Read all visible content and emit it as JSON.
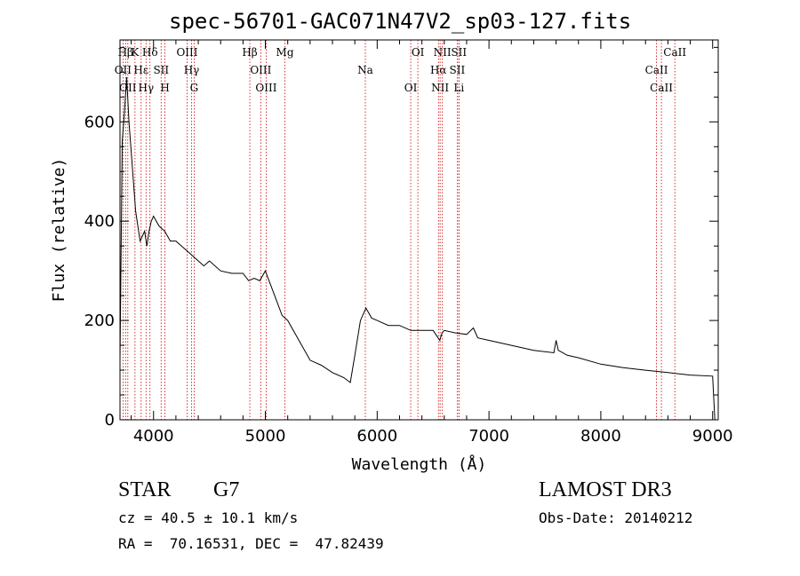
{
  "chart_data": {
    "type": "line",
    "title": "spec-56701-GAC071N47V2_sp03-127.fits",
    "xlabel": "Wavelength (Å)",
    "ylabel": "Flux (relative)",
    "xlim": [
      3700,
      9050
    ],
    "ylim": [
      0,
      765
    ],
    "x_ticks": [
      4000,
      5000,
      6000,
      7000,
      8000,
      9000
    ],
    "y_ticks": [
      0,
      200,
      400,
      600
    ],
    "series": [
      {
        "name": "flux",
        "x": [
          3700,
          3720,
          3740,
          3760,
          3780,
          3800,
          3820,
          3840,
          3860,
          3880,
          3900,
          3920,
          3940,
          3960,
          3980,
          4000,
          4050,
          4100,
          4150,
          4200,
          4250,
          4300,
          4350,
          4400,
          4450,
          4500,
          4600,
          4700,
          4800,
          4850,
          4900,
          4950,
          5000,
          5050,
          5100,
          5150,
          5200,
          5300,
          5400,
          5500,
          5600,
          5700,
          5760,
          5800,
          5850,
          5900,
          5950,
          6000,
          6100,
          6200,
          6300,
          6400,
          6500,
          6560,
          6580,
          6600,
          6700,
          6800,
          6860,
          6900,
          7000,
          7200,
          7400,
          7580,
          7600,
          7620,
          7700,
          7800,
          8000,
          8200,
          8400,
          8600,
          8800,
          9000,
          9020
        ],
        "y": [
          120,
          560,
          620,
          690,
          600,
          540,
          480,
          420,
          390,
          360,
          370,
          380,
          350,
          380,
          400,
          410,
          390,
          380,
          360,
          360,
          350,
          340,
          330,
          320,
          310,
          320,
          300,
          295,
          295,
          280,
          285,
          280,
          300,
          270,
          240,
          210,
          200,
          160,
          120,
          110,
          95,
          85,
          75,
          130,
          200,
          225,
          205,
          200,
          190,
          190,
          180,
          180,
          180,
          160,
          175,
          180,
          175,
          172,
          185,
          165,
          160,
          150,
          140,
          135,
          160,
          140,
          130,
          125,
          112,
          105,
          100,
          95,
          90,
          88,
          0
        ]
      }
    ],
    "lines": [
      {
        "label": "Hβ",
        "x": 3750
      },
      {
        "label": "OII",
        "x": 3727
      },
      {
        "label": "OII",
        "x": 3770
      },
      {
        "label": "K",
        "x": 3834
      },
      {
        "label": "Hε",
        "x": 3889
      },
      {
        "label": "Hγ",
        "x": 3933
      },
      {
        "label": "Hδ",
        "x": 3968
      },
      {
        "label": "SII",
        "x": 4068
      },
      {
        "label": "H",
        "x": 4102
      },
      {
        "label": "OIII",
        "x": 4300
      },
      {
        "label": "Hγ",
        "x": 4340
      },
      {
        "label": "G",
        "x": 4363
      },
      {
        "label": "Hβ",
        "x": 4861
      },
      {
        "label": "OIII",
        "x": 4959
      },
      {
        "label": "OIII",
        "x": 5007
      },
      {
        "label": "Mg",
        "x": 5175
      },
      {
        "label": "Na",
        "x": 5894
      },
      {
        "label": "OI",
        "x": 6300
      },
      {
        "label": "OI",
        "x": 6364
      },
      {
        "label": "Hα",
        "x": 6548
      },
      {
        "label": "NII",
        "x": 6563
      },
      {
        "label": "NII",
        "x": 6583
      },
      {
        "label": "SII",
        "x": 6716
      },
      {
        "label": "Li",
        "x": 6731
      },
      {
        "label": "SII",
        "x": 6731
      },
      {
        "label": "CaII",
        "x": 8498
      },
      {
        "label": "CaII",
        "x": 8542
      },
      {
        "label": "CaII",
        "x": 8662
      }
    ]
  },
  "info": {
    "object_class": "STAR",
    "subclass": "G7",
    "survey": "LAMOST DR3",
    "redshift": "cz = 40.5 ± 10.1 km/s",
    "obs_date": "Obs-Date: 20140212",
    "coords": "RA =  70.16531, DEC =  47.82439"
  }
}
